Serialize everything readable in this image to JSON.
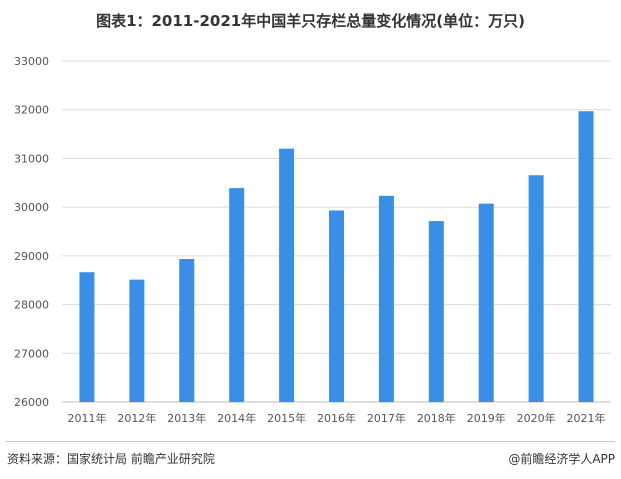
{
  "title": "图表1：2011-2021年中国羊只存栏总量变化情况(单位：万只)",
  "footer": {
    "source": "资料来源：国家统计局 前瞻产业研究院",
    "brand": "@前瞻经济学人APP"
  },
  "colors": {
    "bar": "#3a8ee6",
    "grid": "#dcdcdc",
    "axis": "#bfbfbf"
  },
  "chart_data": {
    "type": "bar",
    "categories": [
      "2011年",
      "2012年",
      "2013年",
      "2014年",
      "2015年",
      "2016年",
      "2017年",
      "2018年",
      "2019年",
      "2020年",
      "2021年"
    ],
    "series": [
      {
        "values": [
          28664,
          28512,
          28935,
          30391,
          31200,
          29931,
          30232,
          29714,
          30072,
          30655,
          31969
        ]
      }
    ],
    "ylim": [
      26000,
      33000
    ],
    "yticks": [
      26000,
      27000,
      28000,
      29000,
      30000,
      31000,
      32000,
      33000
    ],
    "grid": true,
    "legend": "none"
  }
}
